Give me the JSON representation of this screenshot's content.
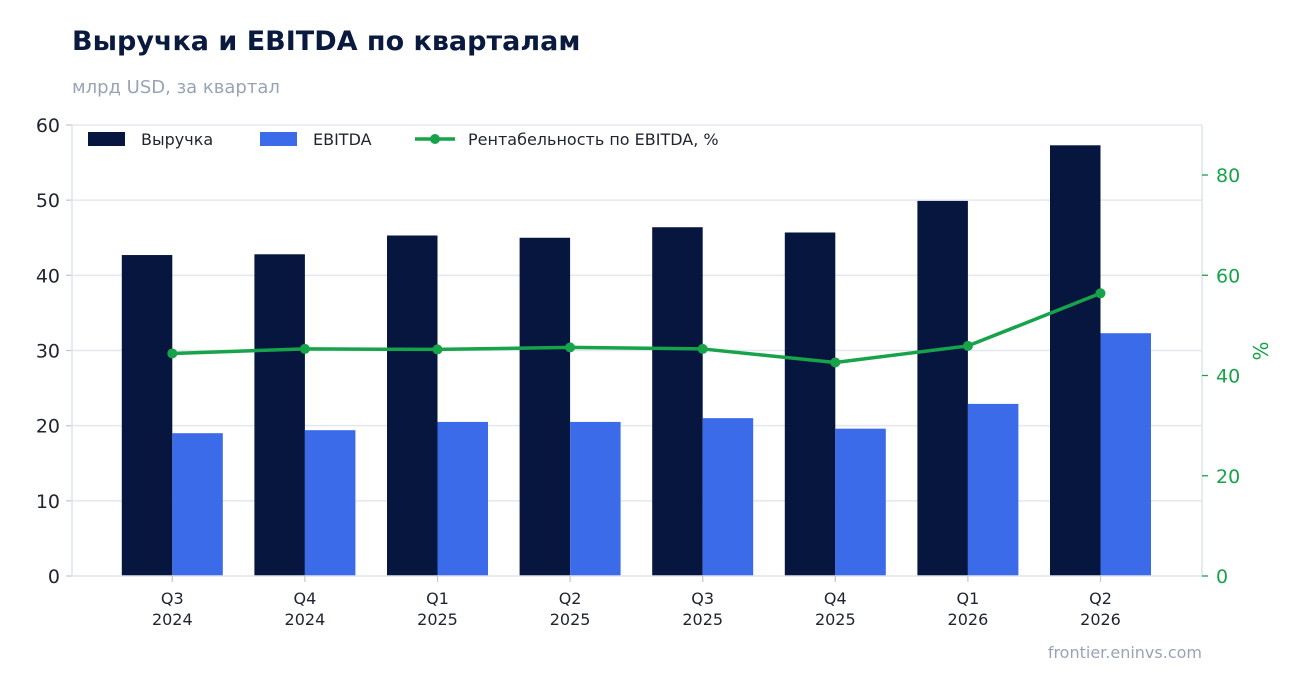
{
  "header": {
    "title": "Выручка и EBITDA по кварталам",
    "subtitle": "млрд USD, за квартал"
  },
  "footer": {
    "source": "frontier.eninvs.com"
  },
  "chart_data": {
    "type": "bar",
    "categories": [
      [
        "Q3",
        "2024"
      ],
      [
        "Q4",
        "2024"
      ],
      [
        "Q1",
        "2025"
      ],
      [
        "Q2",
        "2025"
      ],
      [
        "Q3",
        "2025"
      ],
      [
        "Q4",
        "2025"
      ],
      [
        "Q1",
        "2026"
      ],
      [
        "Q2",
        "2026"
      ]
    ],
    "series": [
      {
        "name": "Выручка",
        "kind": "bar",
        "axis": "left",
        "color": "#06163f",
        "values": [
          42.7,
          42.8,
          45.3,
          45.0,
          46.4,
          45.7,
          49.9,
          57.3
        ]
      },
      {
        "name": "EBITDA",
        "kind": "bar",
        "axis": "left",
        "color": "#3b6be8",
        "values": [
          19.0,
          19.4,
          20.5,
          20.5,
          21.0,
          19.6,
          22.9,
          32.3
        ]
      },
      {
        "name": "Рентабельность по EBITDA, %",
        "kind": "line",
        "axis": "right",
        "color": "#16a34a",
        "values": [
          44.4,
          45.3,
          45.2,
          45.6,
          45.3,
          42.6,
          45.9,
          56.4
        ]
      }
    ],
    "ylim": [
      0,
      60
    ],
    "yticks": [
      0,
      10,
      20,
      30,
      40,
      50,
      60
    ],
    "y2lim": [
      0,
      80
    ],
    "y2ticks": [
      0,
      20,
      40,
      60,
      80
    ],
    "y2label": "%",
    "y2_color": "#16a34a",
    "grid": true,
    "legend_position": "top-left"
  }
}
